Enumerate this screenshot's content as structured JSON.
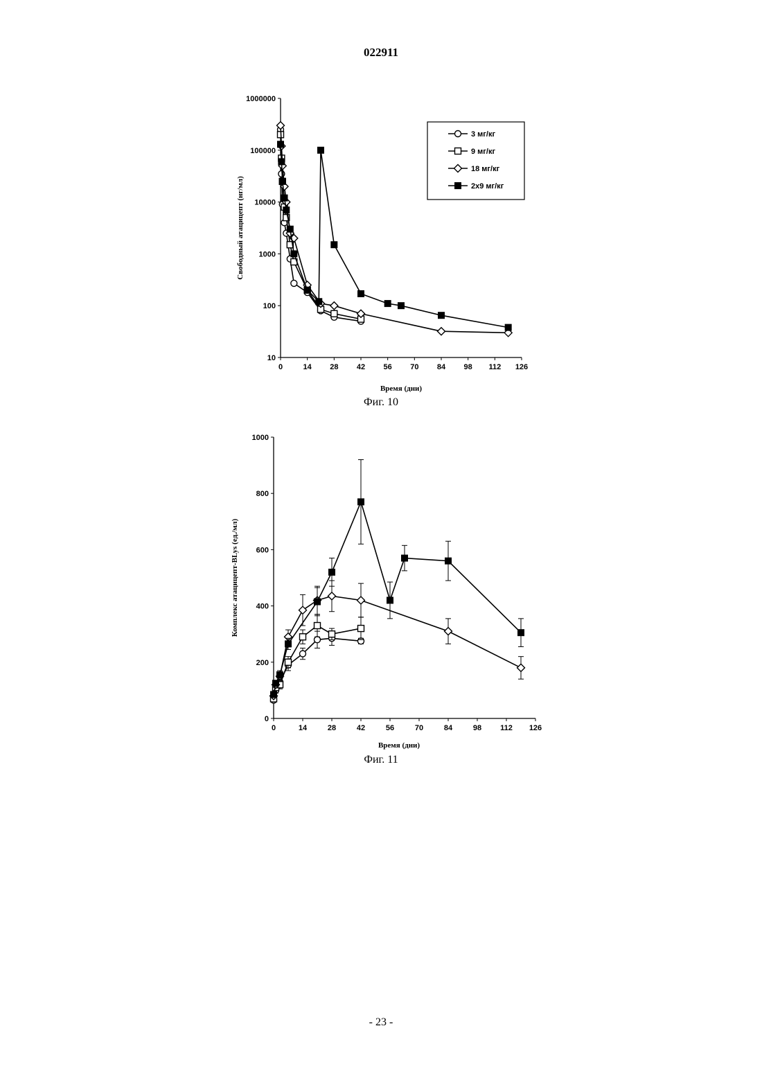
{
  "header": {
    "doc_number": "022911"
  },
  "footer": {
    "page_number": "- 23 -"
  },
  "chart_data": [
    {
      "type": "line",
      "caption": "Фиг. 10",
      "xlabel": "Время (дни)",
      "ylabel": "Свободный атацицепт (нг/мл)",
      "y_scale": "log",
      "xlim": [
        0,
        126
      ],
      "ylim": [
        10,
        1000000
      ],
      "x_ticks": [
        "0",
        "14",
        "28",
        "42",
        "56",
        "70",
        "84",
        "98",
        "112",
        "126"
      ],
      "y_ticks": [
        "10",
        "100",
        "1000",
        "10000",
        "100000",
        "1000000"
      ],
      "legend_position": "top-right",
      "series": [
        {
          "name": "3 мг/кг",
          "marker": "circle-open",
          "x": [
            0,
            0.5,
            1,
            2,
            3,
            5,
            7,
            14,
            21,
            28,
            42
          ],
          "y": [
            250000,
            35000,
            9000,
            4000,
            2500,
            800,
            270,
            180,
            80,
            60,
            50
          ]
        },
        {
          "name": "9 мг/кг",
          "marker": "square-open",
          "x": [
            0,
            0.5,
            1,
            2,
            3,
            5,
            7,
            14,
            21,
            28,
            42
          ],
          "y": [
            200000,
            70000,
            25000,
            8000,
            5000,
            1500,
            700,
            200,
            85,
            70,
            55
          ]
        },
        {
          "name": "18 мг/кг",
          "marker": "diamond-open",
          "x": [
            0,
            0.5,
            1,
            2,
            3,
            5,
            7,
            14,
            21,
            28,
            42,
            84,
            119
          ],
          "y": [
            300000,
            120000,
            50000,
            20000,
            10000,
            2500,
            2000,
            250,
            110,
            100,
            70,
            32,
            30
          ]
        },
        {
          "name": "2x9 мг/кг",
          "marker": "square-filled",
          "x": [
            0,
            0.5,
            1,
            2,
            3,
            5,
            7,
            14,
            20,
            21,
            28,
            42,
            56,
            63,
            84,
            119
          ],
          "y": [
            130000,
            60000,
            25000,
            12000,
            7000,
            3000,
            1000,
            200,
            120,
            100000,
            1500,
            170,
            110,
            100,
            65,
            38
          ]
        }
      ]
    },
    {
      "type": "line",
      "caption": "Фиг. 11",
      "xlabel": "Время (дни)",
      "ylabel": "Комплекс атацицепт-BLys (ед./мл)",
      "xlim": [
        0,
        126
      ],
      "ylim": [
        0,
        1000
      ],
      "x_ticks": [
        "0",
        "14",
        "28",
        "42",
        "56",
        "70",
        "84",
        "98",
        "112",
        "126"
      ],
      "y_ticks": [
        "0",
        "200",
        "400",
        "600",
        "800",
        "1000"
      ],
      "series": [
        {
          "name": "",
          "marker": "circle-open",
          "x": [
            0,
            1,
            3,
            7,
            14,
            21,
            28,
            42
          ],
          "y": [
            65,
            100,
            130,
            190,
            230,
            280,
            285,
            275
          ],
          "err": [
            5,
            10,
            15,
            20,
            20,
            30,
            25,
            10
          ]
        },
        {
          "name": "",
          "marker": "square-open",
          "x": [
            0,
            1,
            3,
            7,
            14,
            21,
            28,
            42
          ],
          "y": [
            70,
            110,
            120,
            200,
            290,
            330,
            300,
            320
          ],
          "err": [
            5,
            10,
            15,
            20,
            25,
            40,
            20,
            40
          ]
        },
        {
          "name": "",
          "marker": "diamond-open",
          "x": [
            0,
            1,
            3,
            7,
            14,
            21,
            28,
            42,
            84,
            119
          ],
          "y": [
            80,
            120,
            150,
            290,
            385,
            420,
            435,
            420,
            310,
            180
          ],
          "err": [
            5,
            10,
            15,
            25,
            55,
            50,
            55,
            60,
            45,
            40
          ]
        },
        {
          "name": "",
          "marker": "square-filled",
          "x": [
            0,
            1,
            3,
            7,
            21,
            28,
            42,
            56,
            63,
            84,
            119
          ],
          "y": [
            85,
            125,
            155,
            265,
            415,
            520,
            770,
            420,
            570,
            560,
            305
          ],
          "err": [
            5,
            10,
            15,
            20,
            50,
            50,
            150,
            65,
            45,
            70,
            50
          ]
        }
      ]
    }
  ]
}
